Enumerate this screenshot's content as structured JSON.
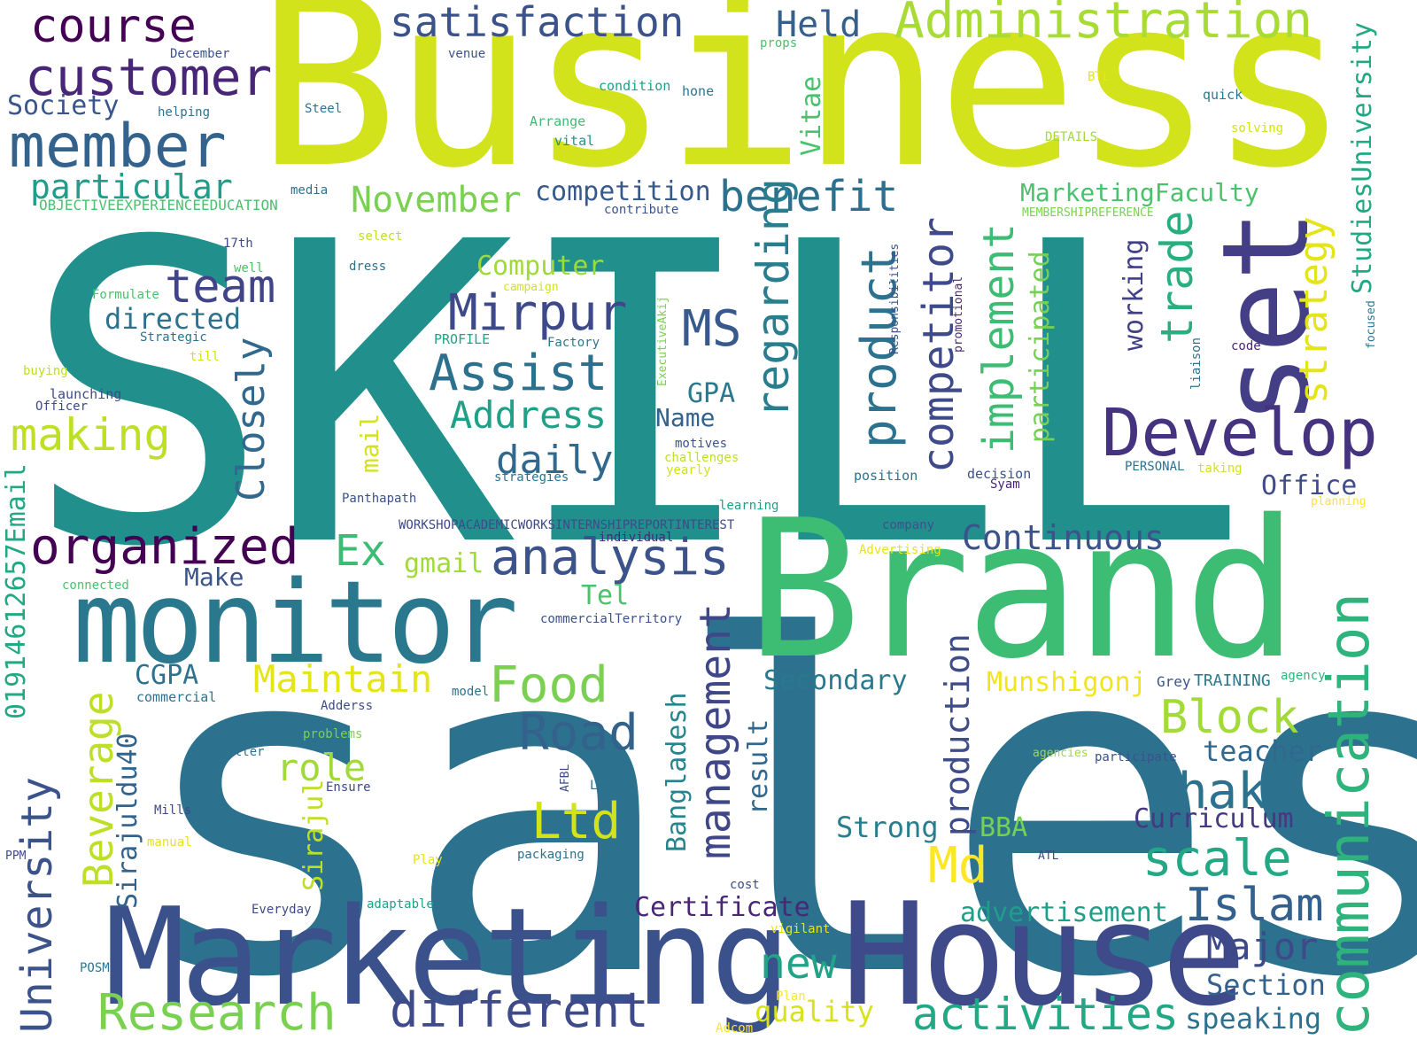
{
  "words": [
    {
      "id": "skill",
      "text": "SKILL",
      "color": "#21908d"
    },
    {
      "id": "sales",
      "text": "sales",
      "color": "#2c728e"
    },
    {
      "id": "business",
      "text": "Business",
      "color": "#d2e21b"
    },
    {
      "id": "brand",
      "text": "Brand",
      "color": "#3dbc74"
    },
    {
      "id": "marketing",
      "text": "Marketing",
      "color": "#3b518b"
    },
    {
      "id": "house",
      "text": "House",
      "color": "#3e4a89"
    },
    {
      "id": "monitor",
      "text": "monitor",
      "color": "#2a788e"
    },
    {
      "id": "set",
      "text": "set",
      "color": "#433e85"
    },
    {
      "id": "develop",
      "text": "Develop",
      "color": "#46337f"
    },
    {
      "id": "communication",
      "text": "communication",
      "color": "#2eb37c"
    },
    {
      "id": "administration",
      "text": "Administration",
      "color": "#a8db34"
    },
    {
      "id": "satisfaction",
      "text": "satisfaction",
      "color": "#3b528b"
    },
    {
      "id": "held",
      "text": "Held",
      "color": "#355f8d"
    },
    {
      "id": "course",
      "text": "course",
      "color": "#440154"
    },
    {
      "id": "customer",
      "text": "customer",
      "color": "#482677"
    },
    {
      "id": "member",
      "text": "member",
      "color": "#33638d"
    },
    {
      "id": "society",
      "text": "Society",
      "color": "#39568c"
    },
    {
      "id": "particular",
      "text": "particular",
      "color": "#1f9e89"
    },
    {
      "id": "team",
      "text": "team",
      "color": "#414487"
    },
    {
      "id": "directed",
      "text": "directed",
      "color": "#2c728e"
    },
    {
      "id": "making",
      "text": "making",
      "color": "#bddf26"
    },
    {
      "id": "organized",
      "text": "organized",
      "color": "#440154"
    },
    {
      "id": "closely",
      "text": "Closely",
      "color": "#31688e"
    },
    {
      "id": "mirpur",
      "text": "Mirpur",
      "color": "#3e4989"
    },
    {
      "id": "assist",
      "text": "Assist",
      "color": "#2d708e"
    },
    {
      "id": "address",
      "text": "Address",
      "color": "#1fa188"
    },
    {
      "id": "daily",
      "text": "daily",
      "color": "#31688e"
    },
    {
      "id": "ms",
      "text": "MS",
      "color": "#38598c"
    },
    {
      "id": "november",
      "text": "November",
      "color": "#7ad151"
    },
    {
      "id": "competition",
      "text": "competition",
      "color": "#38598c"
    },
    {
      "id": "benefit",
      "text": "benefit",
      "color": "#2d708e"
    },
    {
      "id": "computer",
      "text": "Computer",
      "color": "#9fda3a"
    },
    {
      "id": "regarding",
      "text": "regarding",
      "color": "#287d8e"
    },
    {
      "id": "product",
      "text": "product",
      "color": "#2c728e"
    },
    {
      "id": "competitor",
      "text": "competitor",
      "color": "#3e4a89"
    },
    {
      "id": "implement",
      "text": "implement",
      "color": "#3dbc74"
    },
    {
      "id": "participated",
      "text": "participated",
      "color": "#75d054"
    },
    {
      "id": "trade",
      "text": "trade",
      "color": "#29af7f"
    },
    {
      "id": "working",
      "text": "working",
      "color": "#424086"
    },
    {
      "id": "strategy",
      "text": "strategy",
      "color": "#e5e419"
    },
    {
      "id": "studiesuniversity",
      "text": "StudiesUniversity",
      "color": "#22a884"
    },
    {
      "id": "marketingfaculty",
      "text": "MarketingFaculty",
      "color": "#4ac16d"
    },
    {
      "id": "vitae",
      "text": "Vitae",
      "color": "#4ac16d"
    },
    {
      "id": "gpa",
      "text": "GPA",
      "color": "#2a788e"
    },
    {
      "id": "name",
      "text": "Name",
      "color": "#33638d"
    },
    {
      "id": "office",
      "text": "Office",
      "color": "#3e4c8a"
    },
    {
      "id": "continuous",
      "text": "Continuous",
      "color": "#3b528b"
    },
    {
      "id": "analysis",
      "text": "analysis",
      "color": "#3b528b"
    },
    {
      "id": "ex",
      "text": "Ex",
      "color": "#3dbc74"
    },
    {
      "id": "gmail",
      "text": "gmail",
      "color": "#9fda3a"
    },
    {
      "id": "make",
      "text": "Make",
      "color": "#3a548c"
    },
    {
      "id": "tel",
      "text": "Tel",
      "color": "#4ac16d"
    },
    {
      "id": "food",
      "text": "Food",
      "color": "#7ad151"
    },
    {
      "id": "maintain",
      "text": "Maintain",
      "color": "#e5e419"
    },
    {
      "id": "cgpa",
      "text": "CGPA",
      "color": "#2c728e"
    },
    {
      "id": "road",
      "text": "Road",
      "color": "#33638d"
    },
    {
      "id": "role",
      "text": "role",
      "color": "#a0da39"
    },
    {
      "id": "ltd",
      "text": "Ltd",
      "color": "#d2e21b"
    },
    {
      "id": "md",
      "text": "Md",
      "color": "#fde725"
    },
    {
      "id": "dhaka",
      "text": "Dhaka",
      "color": "#2c728e"
    },
    {
      "id": "scale",
      "text": "scale",
      "color": "#22a884"
    },
    {
      "id": "islam",
      "text": "Islam",
      "color": "#34608d"
    },
    {
      "id": "major",
      "text": "Major",
      "color": "#3e4989"
    },
    {
      "id": "section",
      "text": "Section",
      "color": "#33638d"
    },
    {
      "id": "speaking",
      "text": "speaking",
      "color": "#2c728e"
    },
    {
      "id": "block",
      "text": "Block",
      "color": "#a2da37"
    },
    {
      "id": "teacher",
      "text": "teacher",
      "color": "#31688e"
    },
    {
      "id": "munshigonj",
      "text": "Munshigonj",
      "color": "#f1e51d"
    },
    {
      "id": "grey",
      "text": "Grey",
      "color": "#3a548c"
    },
    {
      "id": "training",
      "text": "TRAINING",
      "color": "#2a788e"
    },
    {
      "id": "agency",
      "text": "agency",
      "color": "#2eb37c"
    },
    {
      "id": "secondary",
      "text": "Secondary",
      "color": "#2a788e"
    },
    {
      "id": "curriculum",
      "text": "Curriculum",
      "color": "#453781"
    },
    {
      "id": "strong",
      "text": "Strong",
      "color": "#287d8e"
    },
    {
      "id": "bba",
      "text": "BBA",
      "color": "#75d054"
    },
    {
      "id": "advertisement",
      "text": "advertisement",
      "color": "#1f9e89"
    },
    {
      "id": "activities",
      "text": "activities",
      "color": "#22a884"
    },
    {
      "id": "certificate",
      "text": "Certificate",
      "color": "#482777"
    },
    {
      "id": "new",
      "text": "new",
      "color": "#20a386"
    },
    {
      "id": "quality",
      "text": "quality",
      "color": "#d8e219"
    },
    {
      "id": "research",
      "text": "Research",
      "color": "#7ad151"
    },
    {
      "id": "different",
      "text": "different",
      "color": "#3e4a89"
    },
    {
      "id": "management",
      "text": "management",
      "color": "#3f4788"
    },
    {
      "id": "production",
      "text": "production",
      "color": "#3e4c8a"
    },
    {
      "id": "result",
      "text": "result",
      "color": "#31688e"
    },
    {
      "id": "bangladesh",
      "text": "Bangladesh",
      "color": "#25848e"
    },
    {
      "id": "sirajul",
      "text": "Sirajul",
      "color": "#bddf26"
    },
    {
      "id": "sirajuldu40",
      "text": "Sirajuldu40",
      "color": "#33638d"
    },
    {
      "id": "beverage",
      "text": "Beverage",
      "color": "#bddf26"
    },
    {
      "id": "university",
      "text": "University",
      "color": "#3b528b"
    },
    {
      "id": "email",
      "text": "01914612657Email",
      "color": "#22a884"
    },
    {
      "id": "mail",
      "text": "mail",
      "color": "#d2e21b"
    },
    {
      "id": "objective",
      "text": "OBJECTIVEEXPERIENCEEDUCATION",
      "color": "#4ac16d"
    },
    {
      "id": "workshop",
      "text": "WORKSHOPACADEMICWORKSINTERNSHIPREPORTINTEREST",
      "color": "#3e4a89"
    },
    {
      "id": "membership",
      "text": "MEMBERSHIPREFERENCE",
      "color": "#7ad151"
    },
    {
      "id": "december",
      "text": "December",
      "color": "#3b528b"
    },
    {
      "id": "venue",
      "text": "venue",
      "color": "#3b528b"
    },
    {
      "id": "props",
      "text": "props",
      "color": "#4ac16d"
    },
    {
      "id": "btl",
      "text": "BTL",
      "color": "#e5e419"
    },
    {
      "id": "condition",
      "text": "condition",
      "color": "#1f9e89"
    },
    {
      "id": "hone",
      "text": "hone",
      "color": "#2a788e"
    },
    {
      "id": "quick",
      "text": "quick",
      "color": "#2a788e"
    },
    {
      "id": "steel",
      "text": "Steel",
      "color": "#2c728e"
    },
    {
      "id": "helping",
      "text": "helping",
      "color": "#2c728e"
    },
    {
      "id": "arrange",
      "text": "Arrange",
      "color": "#3dbc74"
    },
    {
      "id": "vital",
      "text": "vital",
      "color": "#21908d"
    },
    {
      "id": "details",
      "text": "DETAILS",
      "color": "#a2da37"
    },
    {
      "id": "solving",
      "text": "solving",
      "color": "#d2e21b"
    },
    {
      "id": "media",
      "text": "media",
      "color": "#2c728e"
    },
    {
      "id": "contribute",
      "text": "contribute",
      "color": "#3b528b"
    },
    {
      "id": "17th",
      "text": "17th",
      "color": "#3e4a89"
    },
    {
      "id": "select",
      "text": "select",
      "color": "#bddf26"
    },
    {
      "id": "well",
      "text": "well",
      "color": "#4ac16d"
    },
    {
      "id": "dress",
      "text": "dress",
      "color": "#2c728e"
    },
    {
      "id": "formulate",
      "text": "Formulate",
      "color": "#4ac16d"
    },
    {
      "id": "campaign",
      "text": "campaign",
      "color": "#d2e21b"
    },
    {
      "id": "strategic",
      "text": "Strategic",
      "color": "#2c728e"
    },
    {
      "id": "profile",
      "text": "PROFILE",
      "color": "#20a386"
    },
    {
      "id": "factory",
      "text": "Factory",
      "color": "#2a788e"
    },
    {
      "id": "till",
      "text": "till",
      "color": "#d2e21b"
    },
    {
      "id": "buying",
      "text": "buying",
      "color": "#bddf26"
    },
    {
      "id": "launching",
      "text": "launching",
      "color": "#3e4a89"
    },
    {
      "id": "officer",
      "text": "Officer",
      "color": "#3e4a89"
    },
    {
      "id": "executiveakij",
      "text": "ExecutiveAkij",
      "color": "#7ad151"
    },
    {
      "id": "responsibilities",
      "text": "Responsibilities",
      "color": "#3b528b"
    },
    {
      "id": "promotional",
      "text": "promotional",
      "color": "#482677"
    },
    {
      "id": "liaison",
      "text": "liaison",
      "color": "#2c728e"
    },
    {
      "id": "code",
      "text": "code",
      "color": "#482677"
    },
    {
      "id": "focused",
      "text": "focused",
      "color": "#2a788e"
    },
    {
      "id": "motives",
      "text": "motives",
      "color": "#3b528b"
    },
    {
      "id": "challenges",
      "text": "challenges",
      "color": "#bddf26"
    },
    {
      "id": "yearly",
      "text": "yearly",
      "color": "#d2e21b"
    },
    {
      "id": "strategies",
      "text": "strategies",
      "color": "#2c728e"
    },
    {
      "id": "position",
      "text": "position",
      "color": "#2c728e"
    },
    {
      "id": "decision",
      "text": "decision",
      "color": "#3b528b"
    },
    {
      "id": "syam",
      "text": "Syam",
      "color": "#482677"
    },
    {
      "id": "personal",
      "text": "PERSONAL",
      "color": "#2c728e"
    },
    {
      "id": "taking",
      "text": "taking",
      "color": "#d2e21b"
    },
    {
      "id": "planning",
      "text": "planning",
      "color": "#fde725"
    },
    {
      "id": "learning",
      "text": "learning",
      "color": "#1f9e89"
    },
    {
      "id": "panthapath",
      "text": "Panthapath",
      "color": "#3b528b"
    },
    {
      "id": "individual",
      "text": "individual",
      "color": "#482677"
    },
    {
      "id": "company",
      "text": "company",
      "color": "#3b528b"
    },
    {
      "id": "advertising",
      "text": "Advertising",
      "color": "#e5e419"
    },
    {
      "id": "connected",
      "text": "connected",
      "color": "#4ac16d"
    },
    {
      "id": "commercialterritory",
      "text": "commercialTerritory",
      "color": "#3b528b"
    },
    {
      "id": "commercial",
      "text": "commercial",
      "color": "#2c728e"
    },
    {
      "id": "model",
      "text": "model",
      "color": "#2c728e"
    },
    {
      "id": "adderss",
      "text": "Adderss",
      "color": "#3e4a89"
    },
    {
      "id": "problems",
      "text": "problems",
      "color": "#7ad151"
    },
    {
      "id": "better",
      "text": "Better",
      "color": "#2c728e"
    },
    {
      "id": "ensure",
      "text": "Ensure",
      "color": "#3e4a89"
    },
    {
      "id": "afbl",
      "text": "AFBL",
      "color": "#3e4a89"
    },
    {
      "id": "lama",
      "text": "Lama",
      "color": "#2c728e"
    },
    {
      "id": "mills",
      "text": "Mills",
      "color": "#3e4a89"
    },
    {
      "id": "manual",
      "text": "manual",
      "color": "#e5e419"
    },
    {
      "id": "play",
      "text": "Play",
      "color": "#e5e419"
    },
    {
      "id": "packaging",
      "text": "packaging",
      "color": "#2c728e"
    },
    {
      "id": "ppm",
      "text": "PPM",
      "color": "#3e4a89"
    },
    {
      "id": "atl",
      "text": "ATL",
      "color": "#3e4a89"
    },
    {
      "id": "agencies",
      "text": "agencies",
      "color": "#a2da37"
    },
    {
      "id": "participate",
      "text": "participate",
      "color": "#3b528b"
    },
    {
      "id": "everyday",
      "text": "Everyday",
      "color": "#3e4a89"
    },
    {
      "id": "adaptable",
      "text": "adaptable",
      "color": "#1f9e89"
    },
    {
      "id": "cost",
      "text": "cost",
      "color": "#3e4a89"
    },
    {
      "id": "vigilant",
      "text": "vigilant",
      "color": "#e5e419"
    },
    {
      "id": "posm",
      "text": "POSM",
      "color": "#2a788e"
    },
    {
      "id": "plan",
      "text": "Plan",
      "color": "#fde725"
    },
    {
      "id": "adcom",
      "text": "Adcom",
      "color": "#fde725"
    }
  ]
}
